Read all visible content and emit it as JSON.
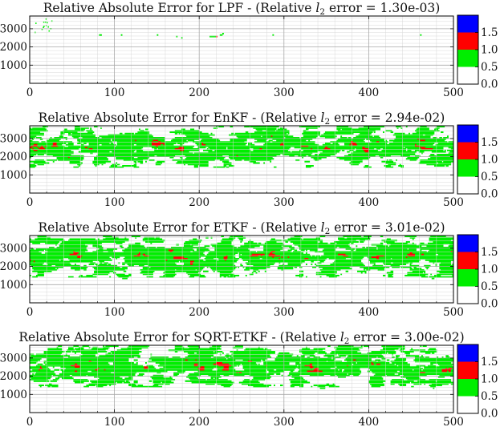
{
  "figure": {
    "colormap": {
      "boundaries": [
        0.0,
        0.5,
        1.0,
        1.5,
        2.0
      ],
      "colors": [
        "#ffffff",
        "#00ee00",
        "#ff0000",
        "#0000ff"
      ]
    }
  },
  "chart_data": [
    {
      "type": "heatmap",
      "title": "Relative Absolute Error for LPF - (Relative l₂ error = 1.30e-03)",
      "title_parts": {
        "prefix": "Relative Absolute Error for LPF - (Relative ",
        "var": "l",
        "sub": "2",
        "suffix": " error = 1.30e-03)"
      },
      "xlim": [
        0,
        500
      ],
      "ylim": [
        0,
        3700
      ],
      "x_ticks": [
        "0",
        "100",
        "200",
        "300",
        "400",
        "500"
      ],
      "y_ticks": [
        "1000",
        "2000",
        "3000"
      ],
      "colorbar_ticks": [
        "0.0",
        "0.5",
        "1.0",
        "1.5"
      ],
      "level_fractions": {
        "below_0.5": 0.999,
        "0.5_to_1.0": 0.001,
        "1.0_to_1.5": 0.0,
        "above_1.5": 0.0
      },
      "grid": true
    },
    {
      "type": "heatmap",
      "title": "Relative Absolute Error for EnKF - (Relative l₂ error = 2.94e-02)",
      "title_parts": {
        "prefix": "Relative Absolute Error for EnKF - (Relative ",
        "var": "l",
        "sub": "2",
        "suffix": " error = 2.94e-02)"
      },
      "xlim": [
        0,
        500
      ],
      "ylim": [
        0,
        3700
      ],
      "x_ticks": [
        "0",
        "100",
        "200",
        "300",
        "400",
        "500"
      ],
      "y_ticks": [
        "1000",
        "2000",
        "3000"
      ],
      "colorbar_ticks": [
        "0.0",
        "0.5",
        "1.0",
        "1.5"
      ],
      "level_fractions": {
        "below_0.5": 0.62,
        "0.5_to_1.0": 0.37,
        "1.0_to_1.5": 0.01,
        "above_1.5": 0.0
      },
      "grid": true
    },
    {
      "type": "heatmap",
      "title": "Relative Absolute Error for ETKF - (Relative l₂ error = 3.01e-02)",
      "title_parts": {
        "prefix": "Relative Absolute Error for ETKF - (Relative ",
        "var": "l",
        "sub": "2",
        "suffix": " error = 3.01e-02)"
      },
      "xlim": [
        0,
        500
      ],
      "ylim": [
        0,
        3700
      ],
      "x_ticks": [
        "0",
        "100",
        "200",
        "300",
        "400",
        "500"
      ],
      "y_ticks": [
        "1000",
        "2000",
        "3000"
      ],
      "colorbar_ticks": [
        "0.0",
        "0.5",
        "1.0",
        "1.5"
      ],
      "level_fractions": {
        "below_0.5": 0.6,
        "0.5_to_1.0": 0.39,
        "1.0_to_1.5": 0.01,
        "above_1.5": 0.0
      },
      "grid": true
    },
    {
      "type": "heatmap",
      "title": "Relative Absolute Error for SQRT-ETKF - (Relative l₂ error = 3.00e-02)",
      "title_parts": {
        "prefix": "Relative Absolute Error for SQRT-ETKF - (Relative ",
        "var": "l",
        "sub": "2",
        "suffix": " error = 3.00e-02)"
      },
      "xlim": [
        0,
        500
      ],
      "ylim": [
        0,
        3700
      ],
      "x_ticks": [
        "0",
        "100",
        "200",
        "300",
        "400",
        "500"
      ],
      "y_ticks": [
        "1000",
        "2000",
        "3000"
      ],
      "colorbar_ticks": [
        "0.0",
        "0.5",
        "1.0",
        "1.5"
      ],
      "level_fractions": {
        "below_0.5": 0.6,
        "0.5_to_1.0": 0.39,
        "1.0_to_1.5": 0.01,
        "above_1.5": 0.0
      },
      "grid": true
    }
  ]
}
